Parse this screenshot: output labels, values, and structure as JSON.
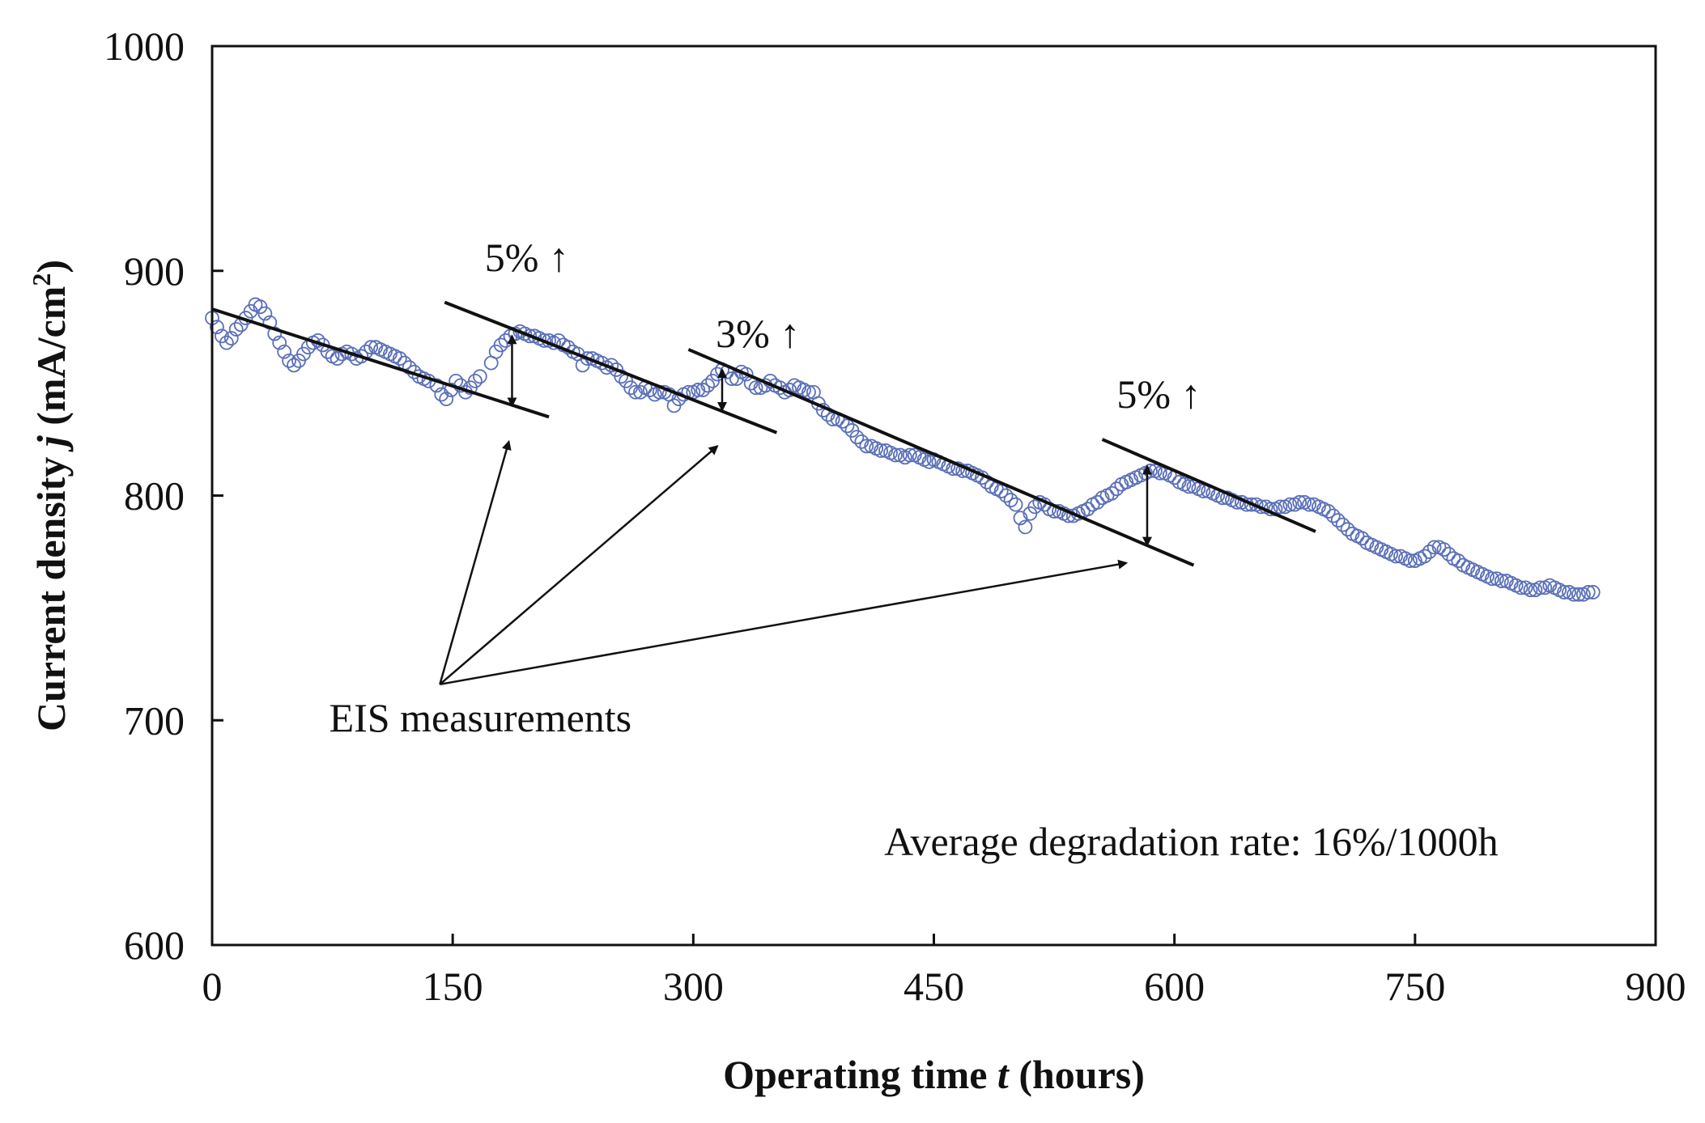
{
  "chart_data": {
    "type": "scatter",
    "xlabel_parts": [
      "Operating time ",
      "t",
      " (hours)"
    ],
    "ylabel_parts": [
      "Current density ",
      "j",
      " (mA/cm",
      "2",
      ")"
    ],
    "xlim": [
      0,
      900
    ],
    "ylim": [
      600,
      1000
    ],
    "xticks": [
      0,
      150,
      300,
      450,
      600,
      750,
      900
    ],
    "yticks": [
      600,
      700,
      800,
      900,
      1000
    ],
    "marker": "open-circle",
    "marker_color": "#5a6fb8",
    "grid": false,
    "legend": "none",
    "series": [
      {
        "points": [
          [
            0,
            879
          ],
          [
            3,
            875
          ],
          [
            6,
            871
          ],
          [
            9,
            868
          ],
          [
            12,
            870
          ],
          [
            15,
            874
          ],
          [
            18,
            876
          ],
          [
            21,
            879
          ],
          [
            24,
            882
          ],
          [
            27,
            885
          ],
          [
            30,
            884
          ],
          [
            33,
            881
          ],
          [
            36,
            877
          ],
          [
            39,
            872
          ],
          [
            42,
            868
          ],
          [
            45,
            864
          ],
          [
            48,
            860
          ],
          [
            51,
            858
          ],
          [
            54,
            860
          ],
          [
            57,
            863
          ],
          [
            60,
            866
          ],
          [
            63,
            868
          ],
          [
            66,
            869
          ],
          [
            69,
            867
          ],
          [
            72,
            864
          ],
          [
            75,
            862
          ],
          [
            78,
            861
          ],
          [
            81,
            863
          ],
          [
            84,
            864
          ],
          [
            87,
            863
          ],
          [
            90,
            861
          ],
          [
            93,
            862
          ],
          [
            96,
            864
          ],
          [
            99,
            866
          ],
          [
            102,
            866
          ],
          [
            105,
            865
          ],
          [
            108,
            864
          ],
          [
            111,
            863
          ],
          [
            114,
            862
          ],
          [
            117,
            861
          ],
          [
            120,
            859
          ],
          [
            123,
            857
          ],
          [
            126,
            855
          ],
          [
            129,
            853
          ],
          [
            132,
            852
          ],
          [
            135,
            851
          ],
          [
            140,
            849
          ],
          [
            143,
            845
          ],
          [
            146,
            843
          ],
          [
            149,
            847
          ],
          [
            152,
            851
          ],
          [
            155,
            849
          ],
          [
            158,
            846
          ],
          [
            161,
            848
          ],
          [
            164,
            851
          ],
          [
            167,
            853
          ],
          [
            174,
            859
          ],
          [
            177,
            864
          ],
          [
            180,
            867
          ],
          [
            183,
            869
          ],
          [
            186,
            871
          ],
          [
            189,
            872
          ],
          [
            192,
            873
          ],
          [
            195,
            872
          ],
          [
            198,
            871
          ],
          [
            201,
            871
          ],
          [
            204,
            870
          ],
          [
            207,
            869
          ],
          [
            210,
            869
          ],
          [
            213,
            868
          ],
          [
            216,
            869
          ],
          [
            219,
            867
          ],
          [
            222,
            866
          ],
          [
            225,
            864
          ],
          [
            228,
            863
          ],
          [
            231,
            858
          ],
          [
            234,
            861
          ],
          [
            237,
            861
          ],
          [
            240,
            860
          ],
          [
            243,
            859
          ],
          [
            246,
            857
          ],
          [
            249,
            858
          ],
          [
            252,
            856
          ],
          [
            255,
            853
          ],
          [
            258,
            851
          ],
          [
            261,
            848
          ],
          [
            264,
            846
          ],
          [
            267,
            846
          ],
          [
            270,
            848
          ],
          [
            273,
            847
          ],
          [
            276,
            845
          ],
          [
            279,
            846
          ],
          [
            282,
            846
          ],
          [
            285,
            845
          ],
          [
            288,
            840
          ],
          [
            291,
            843
          ],
          [
            294,
            845
          ],
          [
            297,
            846
          ],
          [
            300,
            846
          ],
          [
            303,
            847
          ],
          [
            306,
            847
          ],
          [
            309,
            849
          ],
          [
            312,
            851
          ],
          [
            315,
            854
          ],
          [
            318,
            856
          ],
          [
            321,
            855
          ],
          [
            324,
            852
          ],
          [
            327,
            852
          ],
          [
            330,
            855
          ],
          [
            333,
            854
          ],
          [
            336,
            850
          ],
          [
            339,
            848
          ],
          [
            342,
            848
          ],
          [
            345,
            849
          ],
          [
            348,
            851
          ],
          [
            351,
            849
          ],
          [
            354,
            848
          ],
          [
            357,
            846
          ],
          [
            360,
            847
          ],
          [
            363,
            849
          ],
          [
            366,
            848
          ],
          [
            369,
            847
          ],
          [
            372,
            846
          ],
          [
            375,
            846
          ],
          [
            378,
            841
          ],
          [
            381,
            838
          ],
          [
            384,
            836
          ],
          [
            387,
            834
          ],
          [
            390,
            834
          ],
          [
            393,
            833
          ],
          [
            396,
            831
          ],
          [
            399,
            829
          ],
          [
            402,
            826
          ],
          [
            405,
            824
          ],
          [
            408,
            822
          ],
          [
            411,
            822
          ],
          [
            414,
            821
          ],
          [
            417,
            820
          ],
          [
            420,
            820
          ],
          [
            423,
            819
          ],
          [
            426,
            818
          ],
          [
            429,
            818
          ],
          [
            432,
            817
          ],
          [
            435,
            818
          ],
          [
            438,
            818
          ],
          [
            441,
            817
          ],
          [
            444,
            816
          ],
          [
            447,
            815
          ],
          [
            450,
            816
          ],
          [
            453,
            815
          ],
          [
            456,
            814
          ],
          [
            459,
            813
          ],
          [
            462,
            812
          ],
          [
            465,
            812
          ],
          [
            468,
            811
          ],
          [
            471,
            811
          ],
          [
            474,
            810
          ],
          [
            477,
            809
          ],
          [
            480,
            808
          ],
          [
            483,
            806
          ],
          [
            486,
            804
          ],
          [
            489,
            803
          ],
          [
            492,
            802
          ],
          [
            495,
            800
          ],
          [
            498,
            798
          ],
          [
            501,
            796
          ],
          [
            504,
            790
          ],
          [
            507,
            786
          ],
          [
            510,
            792
          ],
          [
            513,
            795
          ],
          [
            516,
            797
          ],
          [
            519,
            796
          ],
          [
            522,
            794
          ],
          [
            525,
            793
          ],
          [
            528,
            793
          ],
          [
            531,
            792
          ],
          [
            534,
            791
          ],
          [
            537,
            791
          ],
          [
            540,
            792
          ],
          [
            543,
            793
          ],
          [
            546,
            794
          ],
          [
            549,
            796
          ],
          [
            552,
            797
          ],
          [
            555,
            799
          ],
          [
            558,
            800
          ],
          [
            561,
            801
          ],
          [
            564,
            803
          ],
          [
            567,
            805
          ],
          [
            570,
            806
          ],
          [
            573,
            807
          ],
          [
            576,
            808
          ],
          [
            579,
            809
          ],
          [
            582,
            810
          ],
          [
            585,
            811
          ],
          [
            588,
            811
          ],
          [
            591,
            810
          ],
          [
            594,
            810
          ],
          [
            597,
            809
          ],
          [
            600,
            808
          ],
          [
            603,
            806
          ],
          [
            606,
            805
          ],
          [
            609,
            804
          ],
          [
            612,
            804
          ],
          [
            615,
            803
          ],
          [
            618,
            802
          ],
          [
            621,
            802
          ],
          [
            624,
            801
          ],
          [
            627,
            800
          ],
          [
            630,
            799
          ],
          [
            633,
            799
          ],
          [
            636,
            798
          ],
          [
            639,
            797
          ],
          [
            642,
            797
          ],
          [
            645,
            796
          ],
          [
            648,
            796
          ],
          [
            651,
            796
          ],
          [
            654,
            795
          ],
          [
            657,
            795
          ],
          [
            660,
            794
          ],
          [
            663,
            794
          ],
          [
            666,
            795
          ],
          [
            669,
            795
          ],
          [
            672,
            796
          ],
          [
            675,
            796
          ],
          [
            678,
            797
          ],
          [
            681,
            797
          ],
          [
            684,
            796
          ],
          [
            687,
            796
          ],
          [
            690,
            795
          ],
          [
            693,
            794
          ],
          [
            696,
            793
          ],
          [
            699,
            791
          ],
          [
            702,
            789
          ],
          [
            705,
            787
          ],
          [
            708,
            785
          ],
          [
            711,
            783
          ],
          [
            714,
            782
          ],
          [
            717,
            781
          ],
          [
            720,
            779
          ],
          [
            723,
            778
          ],
          [
            726,
            777
          ],
          [
            729,
            776
          ],
          [
            732,
            775
          ],
          [
            735,
            774
          ],
          [
            738,
            773
          ],
          [
            741,
            773
          ],
          [
            744,
            772
          ],
          [
            747,
            771
          ],
          [
            750,
            771
          ],
          [
            753,
            772
          ],
          [
            756,
            773
          ],
          [
            759,
            775
          ],
          [
            762,
            777
          ],
          [
            765,
            777
          ],
          [
            768,
            776
          ],
          [
            771,
            774
          ],
          [
            774,
            772
          ],
          [
            777,
            771
          ],
          [
            780,
            769
          ],
          [
            783,
            768
          ],
          [
            786,
            767
          ],
          [
            789,
            766
          ],
          [
            792,
            765
          ],
          [
            795,
            764
          ],
          [
            798,
            763
          ],
          [
            801,
            763
          ],
          [
            804,
            762
          ],
          [
            807,
            762
          ],
          [
            810,
            761
          ],
          [
            813,
            760
          ],
          [
            816,
            759
          ],
          [
            819,
            759
          ],
          [
            822,
            758
          ],
          [
            825,
            758
          ],
          [
            828,
            759
          ],
          [
            831,
            759
          ],
          [
            834,
            760
          ],
          [
            837,
            759
          ],
          [
            840,
            758
          ],
          [
            843,
            757
          ],
          [
            846,
            757
          ],
          [
            849,
            756
          ],
          [
            852,
            756
          ],
          [
            855,
            756
          ],
          [
            858,
            757
          ],
          [
            861,
            757
          ]
        ]
      }
    ],
    "trend_lines": [
      {
        "from": [
          0,
          883
        ],
        "to": [
          210,
          835
        ]
      },
      {
        "from": [
          145,
          886
        ],
        "to": [
          352,
          828
        ]
      },
      {
        "from": [
          297,
          865
        ],
        "to": [
          612,
          769
        ]
      },
      {
        "from": [
          555,
          825
        ],
        "to": [
          688,
          784
        ]
      }
    ],
    "step_arrows": [
      {
        "x": 187,
        "y_low": 840,
        "y_high": 871
      },
      {
        "x": 318,
        "y_low": 838,
        "y_high": 856
      },
      {
        "x": 583,
        "y_low": 778,
        "y_high": 813
      }
    ],
    "pointer_origin": [
      142,
      716
    ],
    "pointer_targets": [
      [
        185,
        824
      ],
      [
        315,
        822
      ],
      [
        570,
        770
      ]
    ],
    "annotations": [
      {
        "text": "5% ↑",
        "x": 170,
        "y": 900
      },
      {
        "text": "3% ↑",
        "x": 314,
        "y": 866
      },
      {
        "text": "5% ↑",
        "x": 564,
        "y": 839
      }
    ],
    "pointer_label": {
      "text": "EIS measurements",
      "x": 73,
      "y": 695
    },
    "note": {
      "text": "Average degradation rate: 16%/1000h",
      "x": 419,
      "y": 640
    }
  }
}
